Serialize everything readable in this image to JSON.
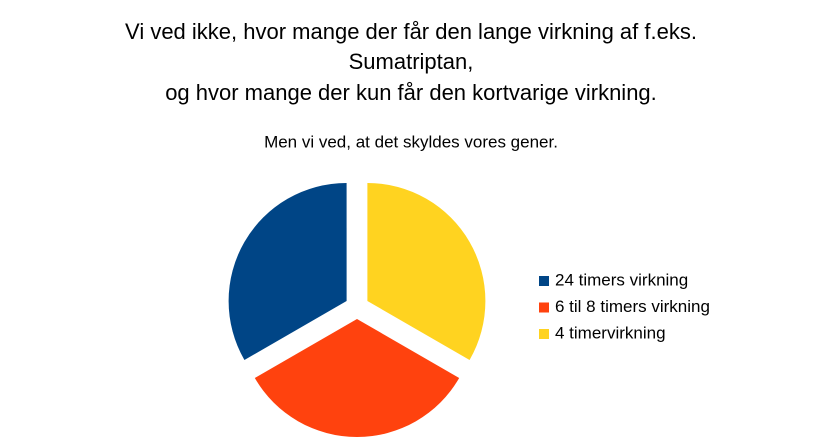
{
  "chart_data": {
    "type": "pie",
    "title_lines": [
      "Vi ved ikke, hvor mange der får den lange virkning af f.eks.",
      "Sumatriptan,",
      "og hvor mange der kun får den kortvarige virkning."
    ],
    "subtitle": "Men vi ved, at  det skyldes vores gener.",
    "categories": [
      "24 timers virkning",
      "6 til 8 timers virkning",
      "4 timervirkning"
    ],
    "values": [
      33.3,
      33.3,
      33.3
    ],
    "colors": [
      "#004586",
      "#ff420e",
      "#ffd320"
    ],
    "legend": "right"
  }
}
